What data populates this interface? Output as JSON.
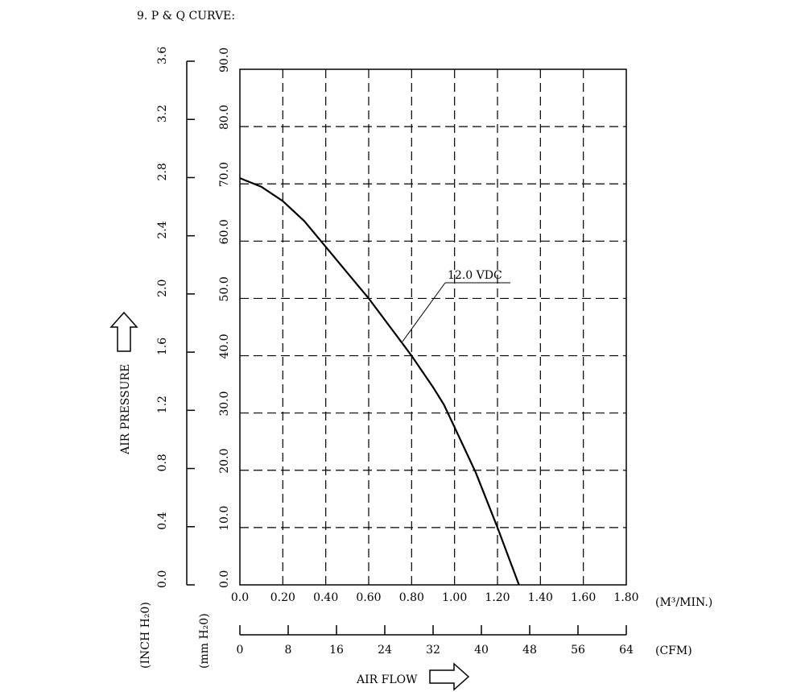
{
  "chart_data": {
    "type": "line",
    "title": "9. P & Q CURVE:",
    "grid": true,
    "x_axis": {
      "label": "AIR FLOW",
      "unit": "(M³/MIN.)",
      "range": [
        0,
        1.8
      ],
      "ticks": [
        "0.0",
        "0.20",
        "0.40",
        "0.60",
        "0.80",
        "1.00",
        "1.20",
        "1.40",
        "1.60",
        "1.80"
      ]
    },
    "x_axis_secondary": {
      "unit": "(CFM)",
      "range": [
        0,
        64
      ],
      "ticks": [
        "0",
        "8",
        "16",
        "24",
        "32",
        "40",
        "48",
        "56",
        "64"
      ]
    },
    "y_axis": {
      "label": "AIR PRESSURE",
      "unit": "(mm H₂0)",
      "range": [
        0,
        90
      ],
      "ticks": [
        "0.0",
        "10.0",
        "20.0",
        "30.0",
        "40.0",
        "50.0",
        "60.0",
        "70.0",
        "80.0",
        "90.0"
      ]
    },
    "y_axis_secondary": {
      "unit": "(INCH H₂0)",
      "range": [
        0,
        3.6
      ],
      "ticks": [
        "0.0",
        "0.4",
        "0.8",
        "1.2",
        "1.6",
        "2.0",
        "2.4",
        "2.8",
        "3.2",
        "3.6"
      ]
    },
    "series": [
      {
        "name": "12.0 VDC",
        "x": [
          0,
          0.1,
          0.2,
          0.3,
          0.4,
          0.5,
          0.6,
          0.7,
          0.8,
          0.9,
          0.95,
          1.0,
          1.1,
          1.2,
          1.25,
          1.3
        ],
        "y": [
          71,
          69.5,
          67,
          63.5,
          59,
          54.5,
          50,
          45,
          40,
          34.5,
          31.5,
          27.5,
          19.5,
          10,
          5,
          0
        ]
      }
    ]
  },
  "legend_arrows": {
    "pressure_arrow": "up-arrow-icon",
    "flow_arrow": "right-arrow-icon"
  }
}
